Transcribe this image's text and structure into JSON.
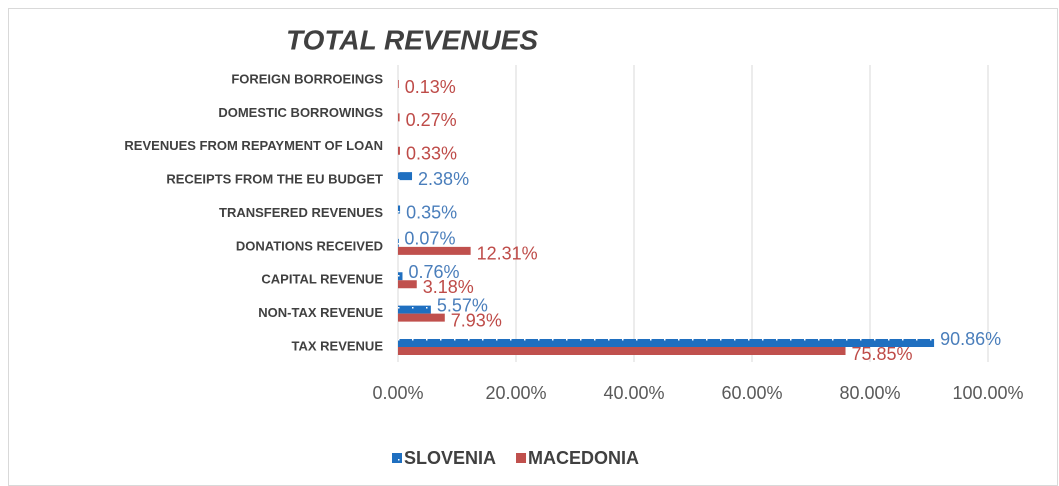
{
  "chart_data": {
    "type": "hbar",
    "title": "TOTAL REVENUES",
    "categories": [
      "FOREIGN BORROEINGS",
      "DOMESTIC BORROWINGS",
      "REVENUES FROM REPAYMENT OF LOAN",
      "RECEIPTS FROM THE EU BUDGET",
      "TRANSFERED REVENUES",
      "DONATIONS RECEIVED",
      "CAPITAL REVENUE",
      "NON-TAX REVENUE",
      "TAX REVENUE"
    ],
    "series": [
      {
        "name": "SLOVENIA",
        "color": "#1f6fc0",
        "values": [
          null,
          null,
          null,
          2.38,
          0.35,
          0.07,
          0.76,
          5.57,
          90.86
        ],
        "value_labels": [
          null,
          null,
          null,
          "2.38%",
          "0.35%",
          "0.07%",
          "0.76%",
          "5.57%",
          "90.86%"
        ]
      },
      {
        "name": "MACEDONIA",
        "color": "#c0504d",
        "values": [
          0.13,
          0.27,
          0.33,
          null,
          null,
          12.31,
          3.18,
          7.93,
          75.85
        ],
        "value_labels": [
          "0.13%",
          "0.27%",
          "0.33%",
          null,
          null,
          "12.31%",
          "3.18%",
          "7.93%",
          "75.85%"
        ]
      }
    ],
    "xlim": [
      0,
      100
    ],
    "xticks": [
      {
        "value": 0,
        "label": "0.00%"
      },
      {
        "value": 20,
        "label": "20.00%"
      },
      {
        "value": 40,
        "label": "40.00%"
      },
      {
        "value": 60,
        "label": "60.00%"
      },
      {
        "value": 80,
        "label": "80.00%"
      },
      {
        "value": 100,
        "label": "100.00%"
      }
    ],
    "grid": true,
    "legend": "bottom"
  }
}
